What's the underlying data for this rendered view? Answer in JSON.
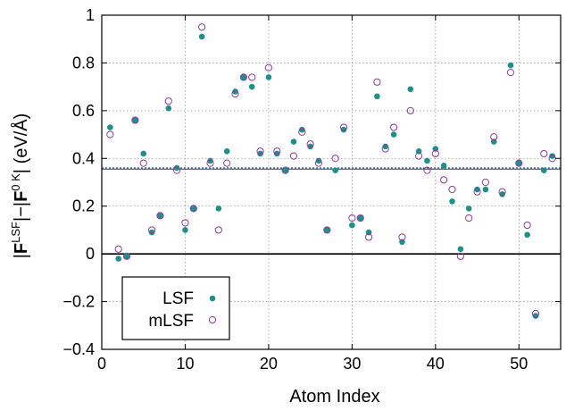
{
  "chart_data": {
    "type": "scatter",
    "xlabel": "Atom Index",
    "ylabel_parts": {
      "bar1": "|",
      "F1": "F",
      "sup1": "LSF",
      "bar2": "|−|",
      "F2": "F",
      "sup2": "0 K",
      "bar3": "|",
      "unit": " (eV/Å)"
    },
    "xlim": [
      0,
      55
    ],
    "ylim": [
      -0.4,
      1.0
    ],
    "x_ticks": [
      0,
      10,
      20,
      30,
      40,
      50
    ],
    "x_tick_labels": [
      "0",
      "10",
      "20",
      "30",
      "40",
      "50"
    ],
    "y_ticks": [
      -0.4,
      -0.2,
      0,
      0.2,
      0.4,
      0.6,
      0.8,
      1.0
    ],
    "y_tick_labels": [
      "−0.4",
      "−0.2",
      "0",
      "0.2",
      "0.4",
      "0.6",
      "0.8",
      "1"
    ],
    "grid": true,
    "legend_position": "bottom-left",
    "reference_lines": [
      {
        "y": 0.355,
        "color": "#1f8f8a",
        "style": "solid"
      },
      {
        "y": 0.36,
        "color": "#7a2f8f",
        "style": "dotted"
      },
      {
        "y": 0.0,
        "color": "#000000",
        "style": "solid"
      }
    ],
    "series": [
      {
        "name": "LSF",
        "marker": "filled-circle",
        "color": "#1f8f8a",
        "x": [
          1,
          2,
          3,
          4,
          5,
          6,
          7,
          8,
          9,
          10,
          11,
          12,
          13,
          14,
          15,
          16,
          17,
          18,
          19,
          20,
          21,
          22,
          23,
          24,
          25,
          26,
          27,
          28,
          29,
          30,
          31,
          32,
          33,
          34,
          35,
          36,
          37,
          38,
          39,
          40,
          41,
          42,
          43,
          44,
          45,
          46,
          47,
          48,
          49,
          50,
          51,
          52,
          53,
          54
        ],
        "y": [
          0.53,
          -0.02,
          -0.01,
          0.56,
          0.42,
          0.09,
          0.16,
          0.61,
          0.36,
          0.1,
          0.19,
          0.91,
          0.39,
          0.19,
          0.43,
          0.68,
          0.74,
          0.7,
          0.42,
          0.74,
          0.42,
          0.35,
          0.47,
          0.52,
          0.45,
          0.39,
          0.1,
          0.35,
          0.52,
          0.12,
          0.15,
          0.09,
          0.66,
          0.45,
          0.5,
          0.05,
          0.69,
          0.43,
          0.39,
          0.44,
          0.37,
          0.22,
          0.02,
          0.19,
          0.27,
          0.27,
          0.47,
          0.25,
          0.79,
          0.38,
          0.08,
          -0.26,
          0.35,
          0.41
        ]
      },
      {
        "name": "mLSF",
        "marker": "open-circle",
        "color": "#8a3a9c",
        "x": [
          1,
          2,
          3,
          4,
          5,
          6,
          7,
          8,
          9,
          10,
          11,
          12,
          13,
          14,
          15,
          16,
          17,
          18,
          19,
          20,
          21,
          22,
          23,
          24,
          25,
          26,
          27,
          28,
          29,
          30,
          31,
          32,
          33,
          34,
          35,
          36,
          37,
          38,
          39,
          40,
          41,
          42,
          43,
          44,
          45,
          46,
          47,
          48,
          49,
          50,
          51,
          52,
          53,
          54
        ],
        "y": [
          0.5,
          0.02,
          -0.01,
          0.56,
          0.38,
          0.1,
          0.16,
          0.64,
          0.35,
          0.13,
          0.19,
          0.95,
          0.38,
          0.1,
          0.38,
          0.67,
          0.74,
          0.74,
          0.43,
          0.78,
          0.43,
          0.35,
          0.41,
          0.51,
          0.46,
          0.38,
          0.1,
          0.4,
          0.53,
          0.15,
          0.15,
          0.07,
          0.72,
          0.44,
          0.53,
          0.07,
          0.6,
          0.41,
          0.35,
          0.42,
          0.31,
          0.27,
          -0.01,
          0.15,
          0.26,
          0.3,
          0.49,
          0.26,
          0.76,
          0.38,
          0.12,
          -0.25,
          0.42,
          0.4
        ]
      }
    ]
  }
}
